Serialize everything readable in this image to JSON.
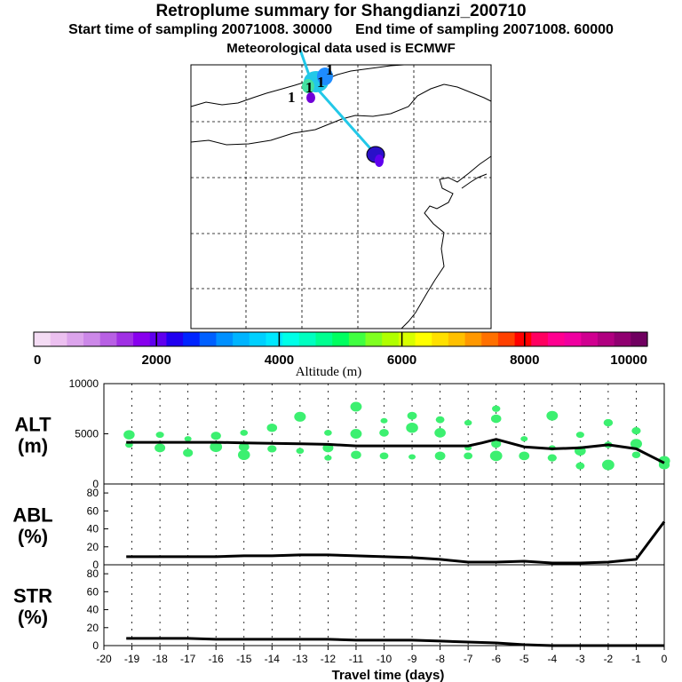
{
  "header": {
    "title": "Retroplume summary for Shangdianzi_200710",
    "start_label": "Start time of sampling 20071008. 30000",
    "end_label": "End time of sampling 20071008. 60000",
    "met_label": "Meteorological data used is ECMWF"
  },
  "map": {
    "trajectory_color": "#22c8e8",
    "marker_label": "1",
    "coast_color": "#000000"
  },
  "colorbar": {
    "colors": [
      "#f4dcf4",
      "#ecc0f0",
      "#dca4ec",
      "#cc88e8",
      "#b860e4",
      "#a030e4",
      "#8800ee",
      "#6000ee",
      "#2000f0",
      "#0024ff",
      "#0060ff",
      "#0090ff",
      "#00b4ff",
      "#00d0ff",
      "#00e8ff",
      "#00ffe8",
      "#00ffc0",
      "#00ff90",
      "#00ff60",
      "#40ff40",
      "#80ff20",
      "#b0ff00",
      "#d8ff00",
      "#ffff00",
      "#ffe000",
      "#ffc000",
      "#ff9800",
      "#ff7000",
      "#ff4000",
      "#ff0000",
      "#ff0060",
      "#ff0090",
      "#f000a0",
      "#d00090",
      "#b00080",
      "#900070",
      "#700060"
    ],
    "tick_labels": [
      "0",
      "2000",
      "4000",
      "6000",
      "8000",
      "10000"
    ],
    "axis_label": "Altitude (m)"
  },
  "chart_data": [
    {
      "type": "line",
      "panel": "ALT",
      "title": "ALT",
      "ylabel": "(m)",
      "ylim": [
        0,
        10000
      ],
      "yticks": [
        0,
        5000,
        10000
      ],
      "ytick_labels": [
        "0",
        "5000",
        "10000"
      ],
      "x": [
        -19.2,
        -18,
        -17,
        -16,
        -15,
        -14,
        -13,
        -12,
        -11,
        -10,
        -9,
        -8,
        -7,
        -6.5,
        -6,
        -5,
        -4,
        -3,
        -2,
        -1,
        0
      ],
      "values": [
        4150,
        4150,
        4150,
        4150,
        4100,
        4050,
        4000,
        3950,
        3800,
        3800,
        3800,
        3800,
        3800,
        4100,
        4450,
        3700,
        3500,
        3600,
        3900,
        3500,
        2100
      ],
      "scatter_color": "#3cf070",
      "scatter": [
        {
          "x": -19.1,
          "y": 4900
        },
        {
          "x": -19.1,
          "y": 3900
        },
        {
          "x": -18.0,
          "y": 4900
        },
        {
          "x": -18.0,
          "y": 3600
        },
        {
          "x": -17.0,
          "y": 4500
        },
        {
          "x": -17.0,
          "y": 3100
        },
        {
          "x": -16.0,
          "y": 4800
        },
        {
          "x": -16.0,
          "y": 3700
        },
        {
          "x": -15.0,
          "y": 5100
        },
        {
          "x": -15.0,
          "y": 3700
        },
        {
          "x": -15.0,
          "y": 2900
        },
        {
          "x": -14.0,
          "y": 5600
        },
        {
          "x": -14.0,
          "y": 3500
        },
        {
          "x": -13.0,
          "y": 6700
        },
        {
          "x": -13.0,
          "y": 3300
        },
        {
          "x": -12.0,
          "y": 5100
        },
        {
          "x": -12.0,
          "y": 3600
        },
        {
          "x": -12.0,
          "y": 2600
        },
        {
          "x": -11.0,
          "y": 7700
        },
        {
          "x": -11.0,
          "y": 5000
        },
        {
          "x": -11.0,
          "y": 2900
        },
        {
          "x": -10.0,
          "y": 6300
        },
        {
          "x": -10.0,
          "y": 5100
        },
        {
          "x": -10.0,
          "y": 2800
        },
        {
          "x": -9.0,
          "y": 6800
        },
        {
          "x": -9.0,
          "y": 5600
        },
        {
          "x": -9.0,
          "y": 2700
        },
        {
          "x": -8.0,
          "y": 6400
        },
        {
          "x": -8.0,
          "y": 5100
        },
        {
          "x": -8.0,
          "y": 2800
        },
        {
          "x": -7.0,
          "y": 6100
        },
        {
          "x": -7.0,
          "y": 3600
        },
        {
          "x": -7.0,
          "y": 2800
        },
        {
          "x": -6.0,
          "y": 6500
        },
        {
          "x": -6.0,
          "y": 4000
        },
        {
          "x": -6.0,
          "y": 2800
        },
        {
          "x": -6.0,
          "y": 7500
        },
        {
          "x": -5.0,
          "y": 4500
        },
        {
          "x": -5.0,
          "y": 2800
        },
        {
          "x": -4.0,
          "y": 6800
        },
        {
          "x": -4.0,
          "y": 3600
        },
        {
          "x": -4.0,
          "y": 2600
        },
        {
          "x": -3.0,
          "y": 4900
        },
        {
          "x": -3.0,
          "y": 3300
        },
        {
          "x": -3.0,
          "y": 1800
        },
        {
          "x": -2.0,
          "y": 6100
        },
        {
          "x": -2.0,
          "y": 3900
        },
        {
          "x": -2.0,
          "y": 1900
        },
        {
          "x": -1.0,
          "y": 5300
        },
        {
          "x": -1.0,
          "y": 4000
        },
        {
          "x": -1.0,
          "y": 2900
        },
        {
          "x": 0.0,
          "y": 2300
        },
        {
          "x": 0.0,
          "y": 1900
        }
      ]
    },
    {
      "type": "line",
      "panel": "ABL",
      "title": "ABL",
      "ylabel": "(%)",
      "ylim": [
        0,
        90
      ],
      "yticks": [
        0,
        20,
        40,
        60,
        80
      ],
      "ytick_labels": [
        "0",
        "20",
        "40",
        "60",
        "80"
      ],
      "x": [
        -19.2,
        -18,
        -17,
        -16,
        -15,
        -14,
        -13,
        -12,
        -11,
        -10,
        -9,
        -8,
        -7,
        -6,
        -5,
        -4,
        -3,
        -2,
        -1,
        0
      ],
      "values": [
        9,
        9,
        9,
        9,
        10,
        10,
        11,
        11,
        10,
        9,
        8,
        6,
        3,
        3,
        4,
        2,
        2,
        3,
        6,
        48
      ]
    },
    {
      "type": "line",
      "panel": "STR",
      "title": "STR",
      "ylabel": "(%)",
      "ylim": [
        0,
        90
      ],
      "yticks": [
        0,
        20,
        40,
        60,
        80
      ],
      "ytick_labels": [
        "0",
        "20",
        "40",
        "60",
        "80"
      ],
      "x": [
        -19.2,
        -18,
        -17,
        -16,
        -15,
        -14,
        -13,
        -12,
        -11,
        -10,
        -9,
        -8,
        -7,
        -6,
        -5,
        -4,
        -3,
        -2,
        -1,
        0
      ],
      "values": [
        8,
        8,
        8,
        7,
        7,
        7,
        7,
        7,
        6,
        6,
        6,
        5,
        4,
        3,
        1,
        0,
        0,
        0,
        0,
        0
      ],
      "xlim": [
        -20,
        0
      ],
      "xtick_labels": [
        "-20",
        "-19",
        "-18",
        "-17",
        "-16",
        "-15",
        "-14",
        "-13",
        "-12",
        "-11",
        "-10",
        "-9",
        "-8",
        "-7",
        "-6",
        "-5",
        "-4",
        "-3",
        "-2",
        "-1",
        "0"
      ],
      "xlabel": "Travel time (days)"
    }
  ]
}
